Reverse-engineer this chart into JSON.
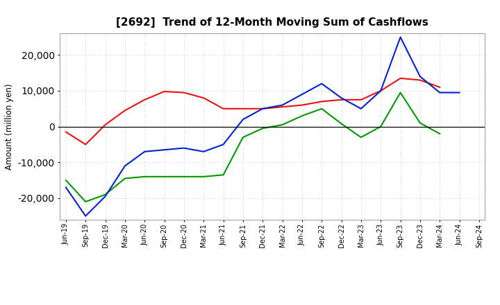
{
  "title": "[2692]  Trend of 12-Month Moving Sum of Cashflows",
  "ylabel": "Amount (million yen)",
  "background_color": "#ffffff",
  "grid_color": "#b0b0b0",
  "x_labels": [
    "Jun-19",
    "Sep-19",
    "Dec-19",
    "Mar-20",
    "Jun-20",
    "Sep-20",
    "Dec-20",
    "Mar-21",
    "Jun-21",
    "Sep-21",
    "Dec-21",
    "Mar-22",
    "Jun-22",
    "Sep-22",
    "Dec-22",
    "Mar-23",
    "Jun-23",
    "Sep-23",
    "Dec-23",
    "Mar-24",
    "Jun-24",
    "Sep-24"
  ],
  "operating_cashflow": [
    -1500,
    -5000,
    500,
    4500,
    7500,
    9800,
    9500,
    8000,
    5000,
    5000,
    5000,
    5500,
    6000,
    7000,
    7500,
    7500,
    10000,
    13500,
    13000,
    11000,
    null,
    null
  ],
  "investing_cashflow": [
    -15000,
    -21000,
    -19000,
    -14500,
    -14000,
    -14000,
    -14000,
    -14000,
    -13500,
    -3000,
    -500,
    500,
    3000,
    5000,
    800,
    -3000,
    0,
    9500,
    1000,
    -2000,
    null,
    null
  ],
  "free_cashflow": [
    -17000,
    -25000,
    -19500,
    -11000,
    -7000,
    -6500,
    -6000,
    -7000,
    -5000,
    2000,
    5000,
    6000,
    9000,
    12000,
    8000,
    5000,
    10000,
    25000,
    14000,
    9500,
    9500,
    null
  ],
  "line_colors": {
    "operating": "#ee1111",
    "investing": "#009900",
    "free": "#0022cc"
  },
  "ylim": [
    -26000,
    26000
  ],
  "yticks": [
    -20000,
    -10000,
    0,
    10000,
    20000
  ],
  "title_fontsize": 11
}
